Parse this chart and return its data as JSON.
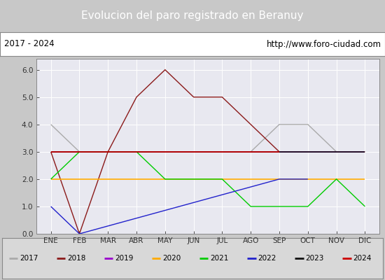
{
  "title": "Evolucion del paro registrado en Beranuy",
  "subtitle_left": "2017 - 2024",
  "subtitle_right": "http://www.foro-ciudad.com",
  "title_bg_color": "#5b9bd5",
  "title_text_color": "#ffffff",
  "plot_bg_color": "#e8e8f0",
  "outer_bg_color": "#c8c8c8",
  "months": [
    "ENE",
    "FEB",
    "MAR",
    "ABR",
    "MAY",
    "JUN",
    "JUL",
    "AGO",
    "SEP",
    "OCT",
    "NOV",
    "DIC"
  ],
  "ylim": [
    0.0,
    6.4
  ],
  "yticks": [
    0.0,
    1.0,
    2.0,
    3.0,
    4.0,
    5.0,
    6.0
  ],
  "series": {
    "2017": {
      "color": "#aaaaaa",
      "linewidth": 1.0,
      "data_x": [
        0,
        1,
        2,
        3,
        4,
        5,
        6,
        7,
        8,
        9,
        10,
        11
      ],
      "data_y": [
        4,
        3,
        3,
        3,
        3,
        3,
        3,
        3,
        4,
        4,
        3,
        3
      ]
    },
    "2018": {
      "color": "#8b1a1a",
      "linewidth": 1.0,
      "data_x": [
        0,
        1,
        2,
        3,
        4,
        5,
        6,
        7,
        8,
        9,
        10,
        11
      ],
      "data_y": [
        3,
        0,
        3,
        5,
        6,
        5,
        5,
        4,
        3,
        3,
        3,
        3
      ]
    },
    "2019": {
      "color": "#9900cc",
      "linewidth": 1.2,
      "data_x": [
        0,
        1,
        2,
        3,
        4,
        5,
        6,
        7,
        8,
        9,
        10,
        11
      ],
      "data_y": [
        3,
        3,
        3,
        3,
        3,
        3,
        3,
        3,
        3,
        3,
        3,
        3
      ]
    },
    "2020": {
      "color": "#ffaa00",
      "linewidth": 1.2,
      "data_x": [
        0,
        1,
        2,
        3,
        4,
        5,
        6,
        7,
        8,
        9,
        10,
        11
      ],
      "data_y": [
        2,
        2,
        2,
        2,
        2,
        2,
        2,
        2,
        2,
        2,
        2,
        2
      ]
    },
    "2021": {
      "color": "#00cc00",
      "linewidth": 1.0,
      "data_x": [
        0,
        1,
        2,
        3,
        4,
        5,
        6,
        7,
        8,
        9,
        10,
        11
      ],
      "data_y": [
        2,
        3,
        3,
        3,
        2,
        2,
        2,
        1,
        1,
        1,
        2,
        1
      ]
    },
    "2022": {
      "color": "#2222cc",
      "linewidth": 1.0,
      "data_x": [
        0,
        1,
        8,
        9
      ],
      "data_y": [
        1,
        0,
        2,
        2
      ]
    },
    "2023": {
      "color": "#111111",
      "linewidth": 1.2,
      "data_x": [
        0,
        1,
        2,
        3,
        4,
        5,
        6,
        7,
        8,
        9,
        10,
        11
      ],
      "data_y": [
        3,
        3,
        3,
        3,
        3,
        3,
        3,
        3,
        3,
        3,
        3,
        3
      ]
    },
    "2024": {
      "color": "#cc0000",
      "linewidth": 1.2,
      "data_x": [
        0,
        1,
        2,
        3,
        4,
        5,
        6,
        7,
        8
      ],
      "data_y": [
        3,
        3,
        3,
        3,
        3,
        3,
        3,
        3,
        3
      ]
    }
  },
  "legend_order": [
    "2017",
    "2018",
    "2019",
    "2020",
    "2021",
    "2022",
    "2023",
    "2024"
  ]
}
